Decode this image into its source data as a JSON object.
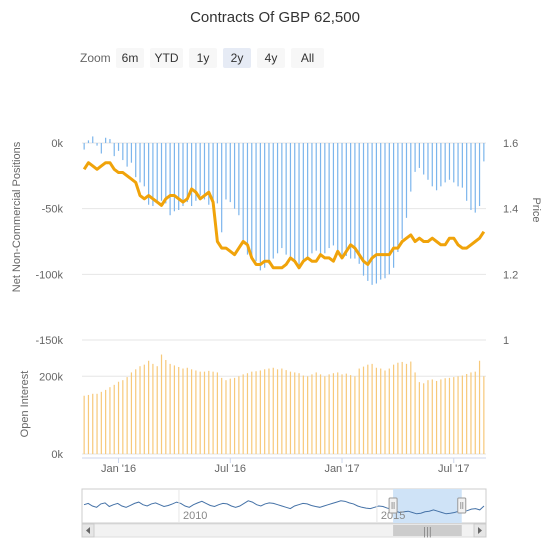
{
  "chart_data": [
    {
      "type": "bar+line",
      "title": "Contracts Of GBP 62,500",
      "ylabel_left": "Net Non-Commercial Positions",
      "ylabel_right": "Price",
      "y_left_ticks": [
        "0k",
        "-50k",
        "-100k",
        "-150k"
      ],
      "y_right_ticks": [
        "1.6",
        "1.4",
        "1.2",
        "1"
      ],
      "ylim_left": [
        -150000,
        0
      ],
      "ylim_right": [
        1.0,
        1.6
      ],
      "x_ticks": [
        "Jan '16",
        "Jul '16",
        "Jan '17",
        "Jul '17"
      ],
      "x_tick_positions": [
        8,
        34,
        60,
        86
      ],
      "series": [
        {
          "kind": "bar",
          "color": "#7cb5ec",
          "values": [
            -5000,
            2000,
            5000,
            -2000,
            -8000,
            4000,
            3000,
            -10000,
            -6000,
            -13000,
            -18000,
            -15000,
            -26000,
            -30000,
            -33000,
            -47000,
            -48000,
            -46000,
            -44000,
            -46000,
            -55000,
            -52000,
            -51000,
            -48000,
            -45000,
            -48000,
            -44000,
            -40000,
            -43000,
            -47000,
            -50000,
            -46000,
            -68000,
            -43000,
            -45000,
            -50000,
            -55000,
            -77000,
            -85000,
            -88000,
            -90000,
            -97000,
            -95000,
            -92000,
            -88000,
            -84000,
            -80000,
            -85000,
            -87000,
            -89000,
            -94000,
            -91000,
            -87000,
            -84000,
            -82000,
            -85000,
            -84000,
            -80000,
            -78000,
            -83000,
            -85000,
            -86000,
            -88000,
            -88000,
            -92000,
            -101000,
            -105000,
            -108000,
            -107000,
            -104000,
            -103000,
            -100000,
            -95000,
            -83000,
            -73000,
            -57000,
            -37000,
            -22000,
            -19000,
            -24000,
            -28000,
            -33000,
            -36000,
            -33000,
            -30000,
            -28000,
            -30000,
            -33000,
            -34000,
            -44000,
            -51000,
            -53000,
            -48000,
            -14000
          ]
        },
        {
          "kind": "line",
          "color": "#f0a30a",
          "values": [
            1.52,
            1.54,
            1.53,
            1.52,
            1.53,
            1.54,
            1.54,
            1.52,
            1.51,
            1.51,
            1.5,
            1.49,
            1.48,
            1.44,
            1.43,
            1.44,
            1.43,
            1.42,
            1.41,
            1.43,
            1.44,
            1.44,
            1.43,
            1.42,
            1.43,
            1.46,
            1.45,
            1.43,
            1.44,
            1.45,
            1.42,
            1.3,
            1.28,
            1.28,
            1.27,
            1.26,
            1.28,
            1.3,
            1.29,
            1.25,
            1.23,
            1.23,
            1.24,
            1.24,
            1.22,
            1.22,
            1.22,
            1.23,
            1.25,
            1.24,
            1.22,
            1.24,
            1.25,
            1.24,
            1.24,
            1.26,
            1.25,
            1.25,
            1.24,
            1.27,
            1.25,
            1.27,
            1.29,
            1.28,
            1.26,
            1.24,
            1.23,
            1.25,
            1.26,
            1.26,
            1.26,
            1.26,
            1.28,
            1.28,
            1.3,
            1.31,
            1.32,
            1.3,
            1.31,
            1.3,
            1.3,
            1.31,
            1.3,
            1.29,
            1.29,
            1.31,
            1.31,
            1.29,
            1.28,
            1.28,
            1.29,
            1.3,
            1.31,
            1.33
          ]
        }
      ]
    },
    {
      "type": "bar",
      "ylabel": "Open Interest",
      "y_ticks": [
        "200k",
        "0k"
      ],
      "ylim": [
        0,
        260000
      ],
      "color": "#f7c97a",
      "values": [
        150000,
        152000,
        155000,
        155000,
        160000,
        165000,
        172000,
        178000,
        186000,
        190000,
        198000,
        210000,
        218000,
        226000,
        230000,
        240000,
        232000,
        226000,
        256000,
        242000,
        232000,
        228000,
        224000,
        220000,
        222000,
        218000,
        215000,
        212000,
        212000,
        214000,
        212000,
        210000,
        196000,
        190000,
        194000,
        196000,
        200000,
        205000,
        208000,
        212000,
        213000,
        215000,
        218000,
        220000,
        222000,
        218000,
        220000,
        216000,
        212000,
        210000,
        208000,
        202000,
        200000,
        205000,
        210000,
        205000,
        200000,
        205000,
        208000,
        210000,
        205000,
        207000,
        203000,
        200000,
        220000,
        225000,
        230000,
        232000,
        222000,
        220000,
        215000,
        220000,
        230000,
        235000,
        237000,
        232000,
        238000,
        210000,
        185000,
        182000,
        190000,
        192000,
        188000,
        192000,
        195000,
        196000,
        198000,
        200000,
        202000,
        206000,
        210000,
        212000,
        240000,
        200000
      ]
    },
    {
      "type": "line",
      "role": "navigator",
      "x_ticks": [
        "2010",
        "2015"
      ],
      "color": "#4572a7",
      "values": [
        0.55,
        0.6,
        0.5,
        0.45,
        0.58,
        0.62,
        0.48,
        0.55,
        0.6,
        0.5,
        0.45,
        0.52,
        0.6,
        0.65,
        0.55,
        0.5,
        0.58,
        0.62,
        0.55,
        0.48,
        0.52,
        0.58,
        0.65,
        0.6,
        0.5,
        0.45,
        0.55,
        0.62,
        0.68,
        0.6,
        0.52,
        0.48,
        0.55,
        0.6,
        0.58,
        0.5,
        0.45,
        0.5,
        0.6,
        0.7,
        0.65,
        0.55,
        0.5,
        0.58,
        0.62,
        0.6,
        0.55,
        0.5,
        0.45,
        0.4,
        0.5,
        0.55,
        0.6,
        0.58,
        0.52,
        0.48,
        0.45,
        0.5,
        0.55,
        0.6,
        0.65,
        0.7,
        0.68,
        0.62,
        0.58,
        0.5,
        0.45,
        0.42,
        0.4,
        0.45,
        0.5,
        0.48,
        0.42,
        0.38,
        0.3,
        0.25,
        0.28,
        0.3,
        0.25,
        0.2,
        0.22,
        0.28,
        0.3,
        0.35,
        0.3,
        0.25,
        0.2,
        0.22,
        0.25,
        0.3,
        0.28,
        0.32,
        0.38,
        0.4,
        0.35,
        0.5
      ]
    }
  ],
  "zoom": {
    "label": "Zoom",
    "buttons": [
      "6m",
      "YTD",
      "1y",
      "2y",
      "4y",
      "All"
    ],
    "active": "2y"
  },
  "navigator": {
    "selection": [
      0.77,
      0.94
    ],
    "handle_glyph": "|||"
  },
  "colors": {
    "bars_net": "#7cb5ec",
    "price_line": "#f0a30a",
    "open_interest": "#f7c97a",
    "navigator_line": "#4572a7",
    "navigator_selection": "#cfe3f7"
  }
}
